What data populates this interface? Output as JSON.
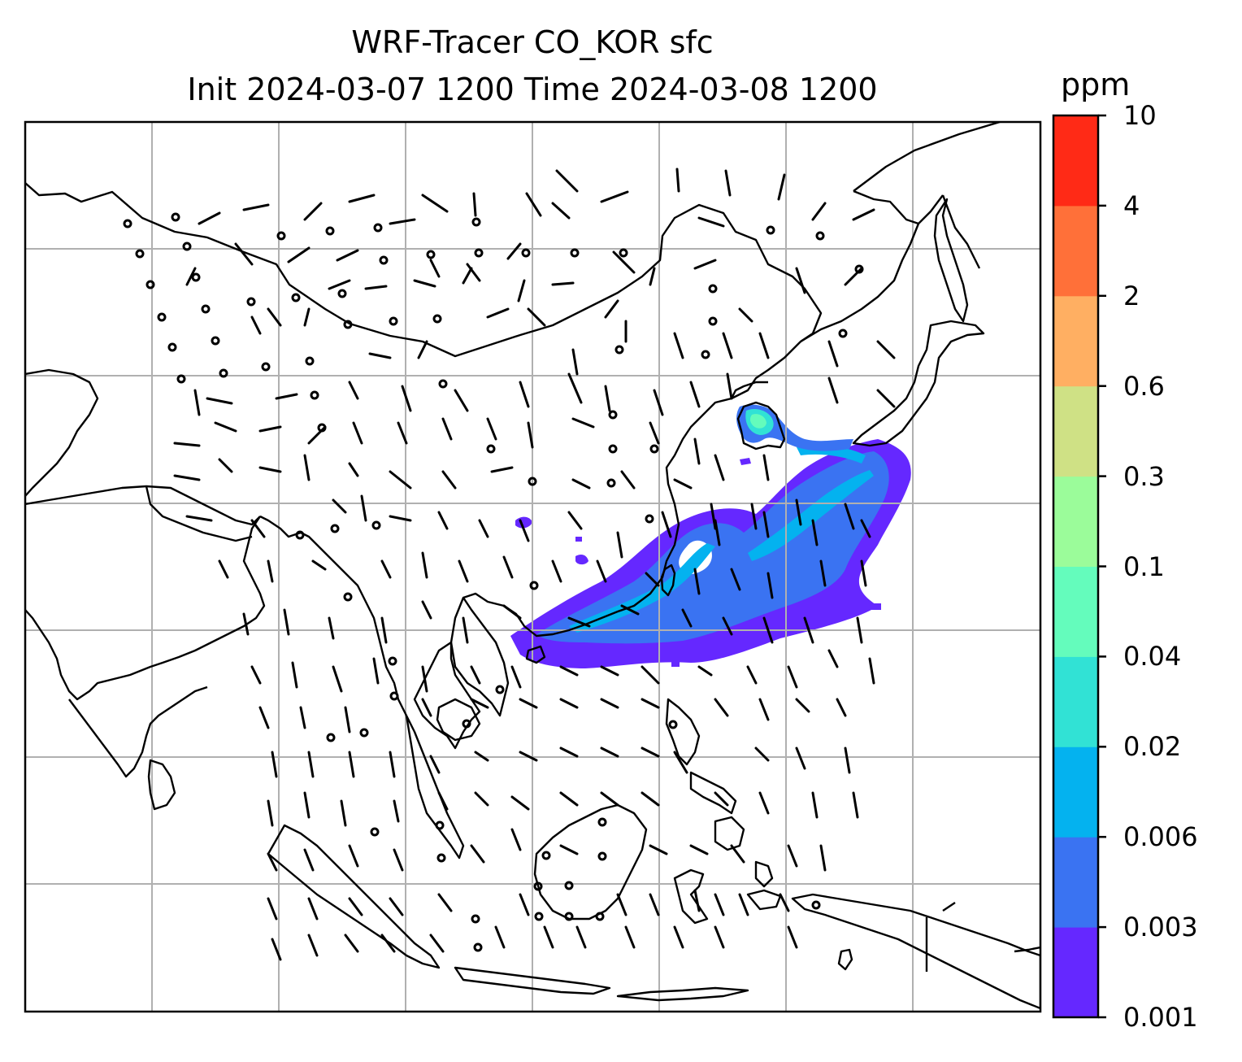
{
  "title": {
    "line1": "WRF-Tracer CO_KOR sfc",
    "line2": "Init 2024-03-07 1200 Time 2024-03-08 1200"
  },
  "colorbar": {
    "units": "ppm",
    "levels": [
      "0.001",
      "0.003",
      "0.006",
      "0.02",
      "0.04",
      "0.1",
      "0.3",
      "0.6",
      "2",
      "4",
      "10"
    ],
    "colors": [
      "#6528ff",
      "#3a73f2",
      "#04b2ef",
      "#31e2d5",
      "#64fcbc",
      "#9bfc9a",
      "#cfe185",
      "#ffaf62",
      "#ff7039",
      "#ff2a16"
    ]
  },
  "map": {
    "coastline_color": "#000000",
    "grid_color": "#b0b0b0",
    "grid": "on",
    "variable": "CO_KOR",
    "level": "sfc"
  }
}
